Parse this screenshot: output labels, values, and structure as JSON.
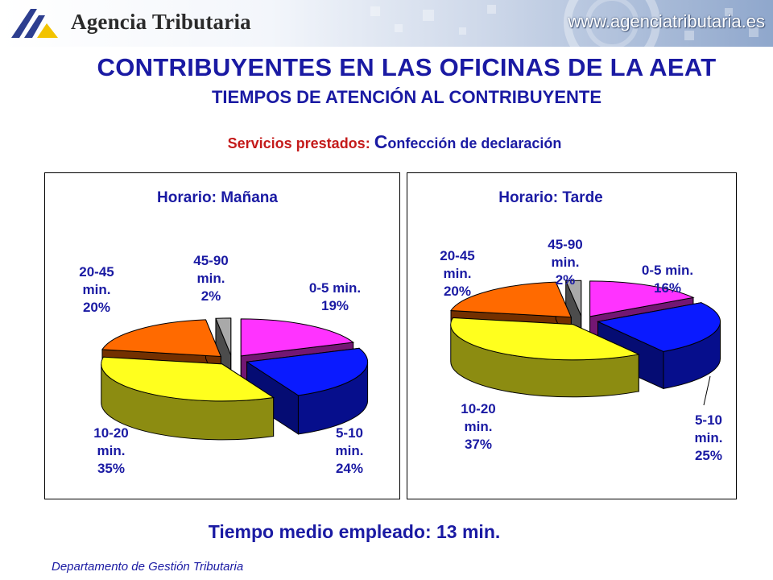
{
  "header": {
    "brand_name": "Agencia Tributaria",
    "url": "www.agenciatributaria.es",
    "logo_icon": "aeat-logo-icon",
    "brand_colors": {
      "logo_blue": "#2d3e8f",
      "logo_yellow": "#f2c300"
    }
  },
  "title": "CONTRIBUYENTES EN LAS OFICINAS DE LA AEAT",
  "subtitle": "TIEMPOS DE ATENCIÓN AL CONTRIBUYENTE",
  "service": {
    "label": "Servicios prestados:",
    "value_first_letter": "C",
    "value_rest": "onfección de declaración"
  },
  "chart_data": [
    {
      "type": "pie",
      "title": "Horario: Mañana",
      "slices": [
        {
          "name": "0-5 min.",
          "label_lines": [
            "0-5 min.",
            "19%"
          ],
          "value": 19,
          "color": "#ff33ff"
        },
        {
          "name": "5-10 min.",
          "label_lines": [
            "5-10",
            "min.",
            "24%"
          ],
          "value": 24,
          "color": "#0a1aff"
        },
        {
          "name": "10-20 min.",
          "label_lines": [
            "10-20",
            "min.",
            "35%"
          ],
          "value": 35,
          "color": "#ffff1e"
        },
        {
          "name": "20-45 min.",
          "label_lines": [
            "20-45",
            "min.",
            "20%"
          ],
          "value": 20,
          "color": "#ff6a00"
        },
        {
          "name": "45-90 min.",
          "label_lines": [
            "45-90",
            "min.",
            "2%"
          ],
          "value": 2,
          "color": "#a9a9a9"
        }
      ]
    },
    {
      "type": "pie",
      "title": "Horario: Tarde",
      "slices": [
        {
          "name": "0-5 min.",
          "label_lines": [
            "0-5 min.",
            "16%"
          ],
          "value": 16,
          "color": "#ff33ff"
        },
        {
          "name": "5-10 min.",
          "label_lines": [
            "5-10",
            "min.",
            "25%"
          ],
          "value": 25,
          "color": "#0a1aff"
        },
        {
          "name": "10-20 min.",
          "label_lines": [
            "10-20",
            "min.",
            "37%"
          ],
          "value": 37,
          "color": "#ffff1e"
        },
        {
          "name": "20-45 min.",
          "label_lines": [
            "20-45",
            "min.",
            "20%"
          ],
          "value": 20,
          "color": "#ff6a00"
        },
        {
          "name": "45-90 min.",
          "label_lines": [
            "45-90",
            "min.",
            "2%"
          ],
          "value": 2,
          "color": "#a9a9a9"
        }
      ]
    }
  ],
  "footer": {
    "tiempo_medio": "Tiempo medio empleado: 13 min.",
    "department": "Departamento de Gestión Tributaria"
  }
}
